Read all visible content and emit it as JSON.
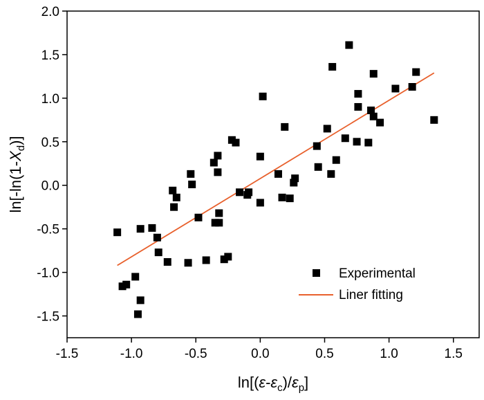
{
  "chart_data": {
    "type": "scatter",
    "title": "",
    "xlabel": {
      "prefix": "ln[(",
      "eps1": "ε",
      "dash": "-",
      "eps2": "ε",
      "sub2": "c",
      "mid": ")/",
      "eps3": "ε",
      "sub3": "p",
      "suffix": "]"
    },
    "ylabel": {
      "prefix": "ln[-ln(1-",
      "var": "X",
      "sub": "d",
      "suffix": ")]"
    },
    "xlim": [
      -1.5,
      1.7
    ],
    "ylim": [
      -1.75,
      2.0
    ],
    "xticks": [
      -1.5,
      -1.0,
      -0.5,
      0.0,
      0.5,
      1.0,
      1.5
    ],
    "xtick_labels": [
      "-1.5",
      "-1.0",
      "-0.5",
      "0.0",
      "0.5",
      "1.0",
      "1.5"
    ],
    "yticks": [
      -1.5,
      -1.0,
      -0.5,
      0.0,
      0.5,
      1.0,
      1.5,
      2.0
    ],
    "ytick_labels": [
      "-1.5",
      "-1.0",
      "-0.5",
      "0.0",
      "0.5",
      "1.0",
      "1.5",
      "2.0"
    ],
    "grid": false,
    "legend_position": "lower-right",
    "series": [
      {
        "name": "Experimental",
        "type": "scatter",
        "marker": "square",
        "color": "#000000",
        "points": [
          [
            -1.11,
            -0.54
          ],
          [
            -1.07,
            -1.16
          ],
          [
            -1.04,
            -1.14
          ],
          [
            -0.97,
            -1.05
          ],
          [
            -0.95,
            -1.48
          ],
          [
            -0.93,
            -1.32
          ],
          [
            -0.93,
            -0.5
          ],
          [
            -0.84,
            -0.49
          ],
          [
            -0.8,
            -0.6
          ],
          [
            -0.79,
            -0.77
          ],
          [
            -0.72,
            -0.88
          ],
          [
            -0.68,
            -0.06
          ],
          [
            -0.67,
            -0.25
          ],
          [
            -0.65,
            -0.14
          ],
          [
            -0.56,
            -0.89
          ],
          [
            -0.54,
            0.13
          ],
          [
            -0.53,
            0.01
          ],
          [
            -0.48,
            -0.37
          ],
          [
            -0.42,
            -0.86
          ],
          [
            -0.36,
            0.26
          ],
          [
            -0.35,
            -0.43
          ],
          [
            -0.33,
            0.34
          ],
          [
            -0.33,
            0.15
          ],
          [
            -0.32,
            -0.43
          ],
          [
            -0.32,
            -0.32
          ],
          [
            -0.28,
            -0.85
          ],
          [
            -0.25,
            -0.82
          ],
          [
            -0.22,
            0.52
          ],
          [
            -0.19,
            0.49
          ],
          [
            -0.16,
            -0.08
          ],
          [
            -0.1,
            -0.11
          ],
          [
            -0.09,
            -0.08
          ],
          [
            0.0,
            -0.2
          ],
          [
            0.0,
            0.33
          ],
          [
            0.02,
            1.02
          ],
          [
            0.14,
            0.13
          ],
          [
            0.17,
            -0.14
          ],
          [
            0.19,
            0.67
          ],
          [
            0.23,
            -0.15
          ],
          [
            0.26,
            0.03
          ],
          [
            0.27,
            0.08
          ],
          [
            0.44,
            0.45
          ],
          [
            0.45,
            0.21
          ],
          [
            0.52,
            0.65
          ],
          [
            0.55,
            0.13
          ],
          [
            0.56,
            1.36
          ],
          [
            0.59,
            0.29
          ],
          [
            0.66,
            0.54
          ],
          [
            0.69,
            1.61
          ],
          [
            0.75,
            0.5
          ],
          [
            0.76,
            1.05
          ],
          [
            0.76,
            0.9
          ],
          [
            0.84,
            0.49
          ],
          [
            0.86,
            0.86
          ],
          [
            0.88,
            0.79
          ],
          [
            0.88,
            1.28
          ],
          [
            0.93,
            0.72
          ],
          [
            1.05,
            1.11
          ],
          [
            1.18,
            1.13
          ],
          [
            1.21,
            1.3
          ],
          [
            1.35,
            0.75
          ]
        ]
      },
      {
        "name": "Liner fitting",
        "type": "line",
        "color": "#e8602c",
        "points": [
          [
            -1.11,
            -0.92
          ],
          [
            1.35,
            1.29
          ]
        ]
      }
    ]
  }
}
